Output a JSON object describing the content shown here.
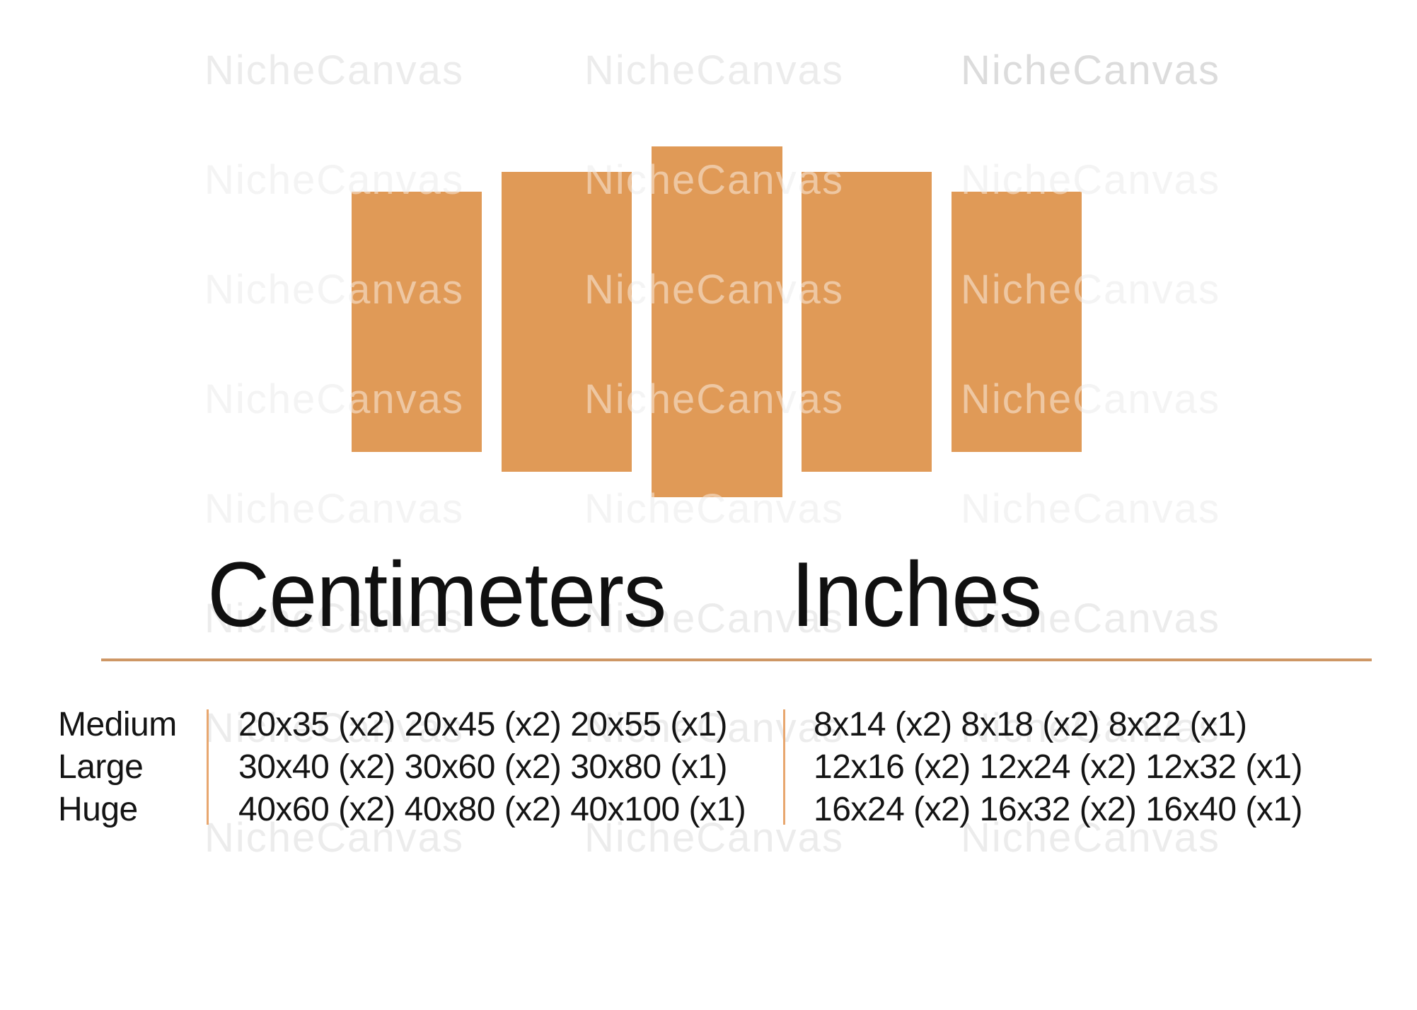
{
  "watermark": {
    "text": "NicheCanvas"
  },
  "panels": {
    "count": 5,
    "description": "five-piece canvas layout"
  },
  "headings": {
    "centimeters": "Centimeters",
    "inches": "Inches"
  },
  "size_table": {
    "rows": [
      {
        "label": "Medium",
        "cm": "20x35 (x2) 20x45 (x2) 20x55 (x1)",
        "inches": "8x14 (x2) 8x18 (x2) 8x22 (x1)"
      },
      {
        "label": "Large",
        "cm": "30x40 (x2) 30x60 (x2) 30x80 (x1)",
        "inches": "12x16 (x2) 12x24 (x2) 12x32 (x1)"
      },
      {
        "label": "Huge",
        "cm": "40x60 (x2) 40x80 (x2) 40x100 (x1)",
        "inches": "16x24 (x2) 16x32 (x2) 16x40 (x1)"
      }
    ]
  },
  "colors": {
    "panel": "#E09A57",
    "rule": "#CE9765",
    "separator": "#E8A76F",
    "text": "#141414",
    "watermark": "#ECECEC",
    "background": "#FFFFFF"
  }
}
